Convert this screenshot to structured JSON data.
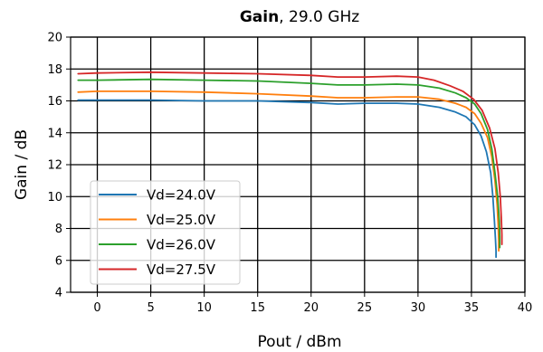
{
  "chart_data": {
    "type": "line",
    "title_bold": "Gain",
    "title_rest": ", 29.0 GHz",
    "xlabel": "Pout / dBm",
    "ylabel": "Gain / dB",
    "xlim": [
      -2.5,
      40
    ],
    "ylim": [
      4,
      20
    ],
    "xticks": [
      0,
      5,
      10,
      15,
      20,
      25,
      30,
      35,
      40
    ],
    "yticks": [
      4,
      6,
      8,
      10,
      12,
      14,
      16,
      18,
      20
    ],
    "grid": true,
    "legend_position": "lower-left",
    "series": [
      {
        "name": "Vd=24.0V",
        "color": "#1f77b4",
        "x": [
          -1.8,
          0,
          5,
          10,
          15,
          20,
          22.5,
          25,
          28,
          30,
          32,
          33.5,
          34.5,
          35.3,
          35.9,
          36.4,
          36.8,
          37.0,
          37.15,
          37.25,
          37.3,
          37.3
        ],
        "y": [
          16.05,
          16.05,
          16.05,
          16.0,
          16.0,
          15.9,
          15.8,
          15.85,
          15.85,
          15.8,
          15.6,
          15.3,
          15.0,
          14.5,
          13.8,
          12.8,
          11.5,
          10.0,
          8.5,
          7.3,
          6.6,
          6.2
        ]
      },
      {
        "name": "Vd=25.0V",
        "color": "#ff7f0e",
        "x": [
          -1.8,
          0,
          5,
          10,
          15,
          20,
          22.5,
          25,
          28,
          30,
          32,
          33.5,
          34.5,
          35.3,
          35.9,
          36.5,
          36.9,
          37.2,
          37.4,
          37.5,
          37.55,
          37.55
        ],
        "y": [
          16.55,
          16.6,
          16.6,
          16.55,
          16.45,
          16.3,
          16.2,
          16.2,
          16.25,
          16.25,
          16.1,
          15.85,
          15.6,
          15.2,
          14.6,
          13.7,
          12.5,
          11.0,
          9.5,
          8.2,
          7.2,
          6.6
        ]
      },
      {
        "name": "Vd=26.0V",
        "color": "#2ca02c",
        "x": [
          -1.8,
          0,
          5,
          10,
          15,
          20,
          22.5,
          25,
          28,
          30,
          32,
          33.5,
          34.5,
          35.3,
          35.9,
          36.5,
          36.9,
          37.2,
          37.45,
          37.6,
          37.65,
          37.65
        ],
        "y": [
          17.3,
          17.3,
          17.35,
          17.3,
          17.25,
          17.1,
          17.0,
          17.0,
          17.05,
          17.0,
          16.8,
          16.5,
          16.2,
          15.8,
          15.2,
          14.2,
          13.0,
          11.5,
          10.0,
          8.5,
          7.5,
          6.8
        ]
      },
      {
        "name": "Vd=27.5V",
        "color": "#d62728",
        "x": [
          -1.8,
          0,
          5,
          10,
          15,
          20,
          22.5,
          25,
          28,
          30,
          31.5,
          33,
          34.2,
          35.2,
          36.0,
          36.7,
          37.2,
          37.5,
          37.7,
          37.8,
          37.85,
          37.85
        ],
        "y": [
          17.7,
          17.75,
          17.8,
          17.75,
          17.7,
          17.6,
          17.5,
          17.5,
          17.55,
          17.5,
          17.3,
          16.95,
          16.6,
          16.1,
          15.4,
          14.3,
          13.0,
          11.5,
          10.0,
          8.6,
          7.6,
          7.0
        ]
      }
    ]
  }
}
